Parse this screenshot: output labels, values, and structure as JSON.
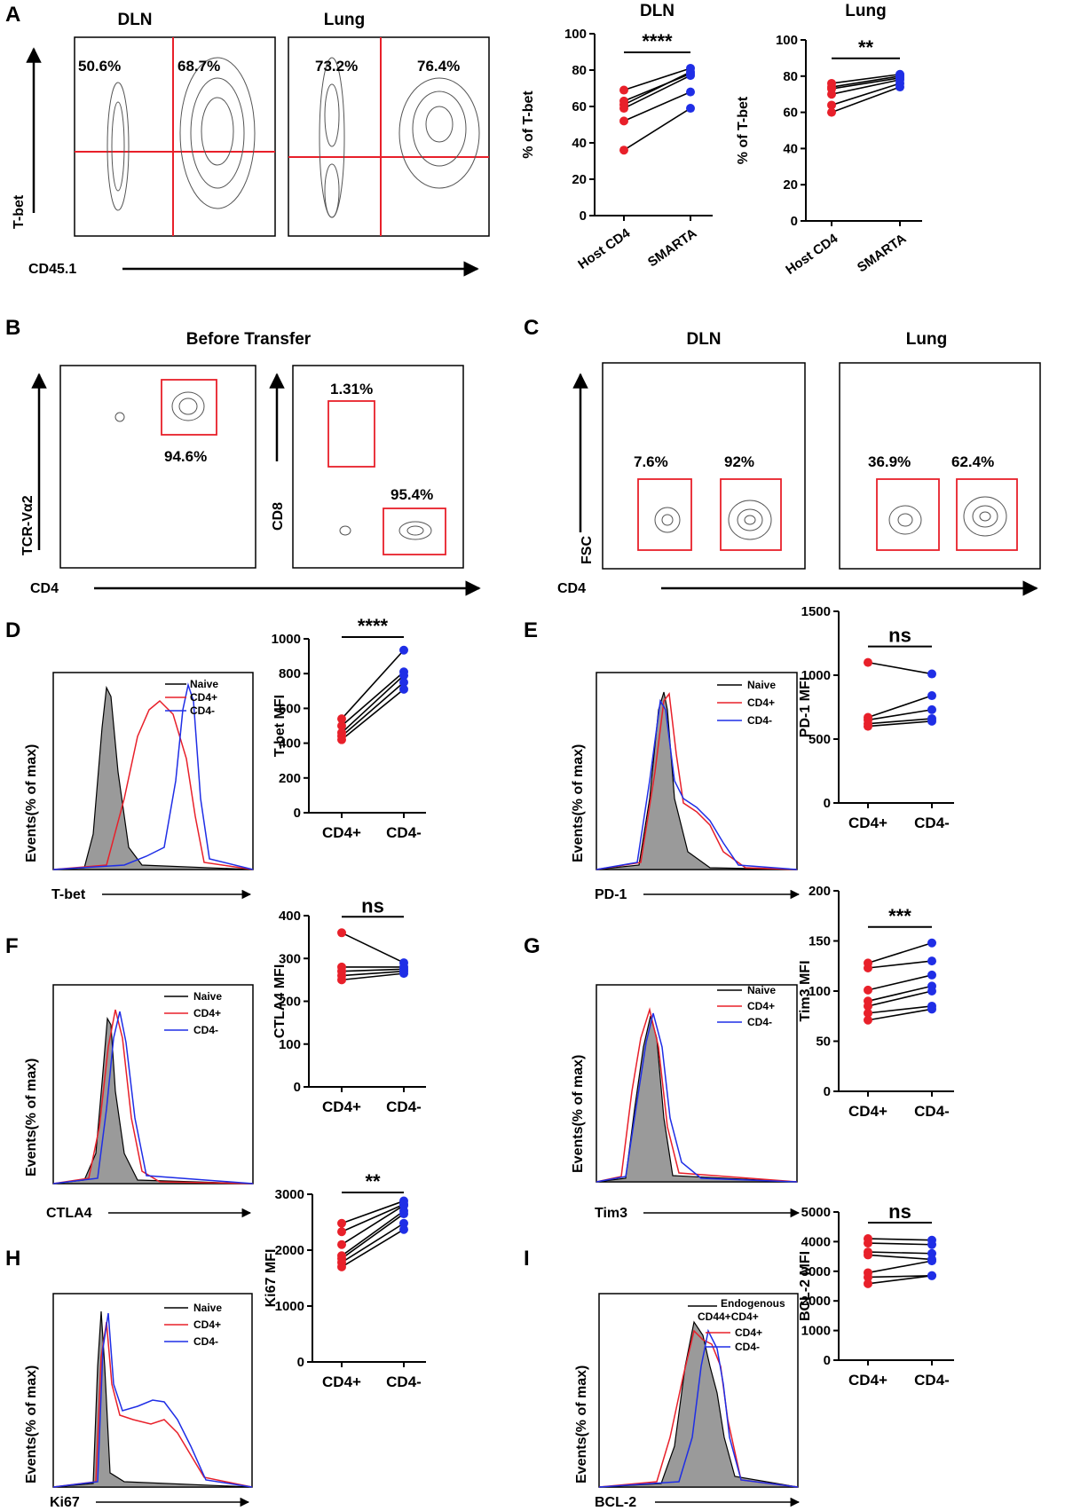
{
  "colors": {
    "red": "#e8202a",
    "blue": "#1f2ee6",
    "gray": "#9a9a9a",
    "black": "#000000"
  },
  "panel_letters": {
    "A": "A",
    "B": "B",
    "C": "C",
    "D": "D",
    "E": "E",
    "F": "F",
    "G": "G",
    "H": "H",
    "I": "I"
  },
  "panel_a": {
    "flow": {
      "dln_title": "DLN",
      "lung_title": "Lung",
      "y_label": "T-bet",
      "x_label": "CD45.1",
      "dln_left": "50.6%",
      "dln_right": "68.7%",
      "lung_left": "73.2%",
      "lung_right": "76.4%"
    }
  },
  "panel_b": {
    "title": "Before Transfer",
    "plot1": {
      "y_label": "TCR-Vα2",
      "x_label": "CD4",
      "gate": "94.6%"
    },
    "plot2": {
      "y_label": "CD8",
      "gate_top": "1.31%",
      "gate_bottom": "95.4%"
    }
  },
  "panel_c": {
    "dln_title": "DLN",
    "lung_title": "Lung",
    "y_label": "FSC",
    "x_label": "CD4",
    "dln_left": "7.6%",
    "dln_right": "92%",
    "lung_left": "36.9%",
    "lung_right": "62.4%"
  },
  "histograms": {
    "d": {
      "x_label": "T-bet",
      "y_label": "Events(% of max)",
      "legend": [
        "Naive",
        "CD4+",
        "CD4-"
      ]
    },
    "e": {
      "x_label": "PD-1",
      "y_label": "Events(% of max)",
      "legend": [
        "Naive",
        "CD4+",
        "CD4-"
      ]
    },
    "f": {
      "x_label": "CTLA4",
      "y_label": "Events(% of max)",
      "legend": [
        "Naive",
        "CD4+",
        "CD4-"
      ]
    },
    "g": {
      "x_label": "Tim3",
      "y_label": "Events(% of max)",
      "legend": [
        "Naive",
        "CD4+",
        "CD4-"
      ]
    },
    "h": {
      "x_label": "Ki67",
      "y_label": "Events(% of max)",
      "legend": [
        "Naive",
        "CD4+",
        "CD4-"
      ]
    },
    "i": {
      "x_label": "BCL-2",
      "y_label": "Events(% of max)",
      "legend_line1": "Endogenous",
      "legend_line2": "CD44+CD4+",
      "legend": [
        "CD4+",
        "CD4-"
      ]
    }
  },
  "chart_data": [
    {
      "id": "a_dln",
      "type": "scatter",
      "title": "DLN",
      "ylabel": "% of T-bet",
      "categories": [
        "Host CD4",
        "SMARTA"
      ],
      "ylim": [
        0,
        100
      ],
      "yticks": [
        0,
        20,
        40,
        60,
        80,
        100
      ],
      "significance": "****",
      "series": [
        {
          "name": "Host CD4",
          "values": [
            69,
            63,
            61,
            59,
            52,
            36
          ]
        },
        {
          "name": "SMARTA",
          "values": [
            81,
            78,
            79,
            77,
            68,
            59
          ]
        }
      ]
    },
    {
      "id": "a_lung",
      "type": "scatter",
      "title": "Lung",
      "ylabel": "% of T-bet",
      "categories": [
        "Host CD4",
        "SMARTA"
      ],
      "ylim": [
        0,
        100
      ],
      "yticks": [
        0,
        20,
        40,
        60,
        80,
        100
      ],
      "significance": "**",
      "series": [
        {
          "name": "Host CD4",
          "values": [
            76,
            74,
            73,
            70,
            64,
            60
          ]
        },
        {
          "name": "SMARTA",
          "values": [
            81,
            80,
            79,
            78,
            76,
            74
          ]
        }
      ]
    },
    {
      "id": "d",
      "type": "scatter",
      "ylabel": "T-bet MFI",
      "categories": [
        "CD4+",
        "CD4-"
      ],
      "ylim": [
        0,
        1000
      ],
      "yticks": [
        0,
        200,
        400,
        600,
        800,
        1000
      ],
      "significance": "****",
      "series": [
        {
          "name": "CD4+",
          "values": [
            540,
            500,
            460,
            440,
            420
          ]
        },
        {
          "name": "CD4-",
          "values": [
            935,
            810,
            790,
            750,
            710
          ]
        }
      ]
    },
    {
      "id": "e",
      "type": "scatter",
      "ylabel": "PD-1 MFI",
      "categories": [
        "CD4+",
        "CD4-"
      ],
      "ylim": [
        0,
        1500
      ],
      "yticks": [
        0,
        500,
        1000,
        1500
      ],
      "significance": "ns",
      "series": [
        {
          "name": "CD4+",
          "values": [
            1100,
            670,
            650,
            620,
            600
          ]
        },
        {
          "name": "CD4-",
          "values": [
            1010,
            840,
            730,
            660,
            640
          ]
        }
      ]
    },
    {
      "id": "f",
      "type": "scatter",
      "ylabel": "CTLA4 MFI",
      "categories": [
        "CD4+",
        "CD4-"
      ],
      "ylim": [
        0,
        400
      ],
      "yticks": [
        0,
        100,
        200,
        300,
        400
      ],
      "significance": "ns",
      "series": [
        {
          "name": "CD4+",
          "values": [
            360,
            280,
            270,
            260,
            250
          ]
        },
        {
          "name": "CD4-",
          "values": [
            290,
            280,
            275,
            270,
            265
          ]
        }
      ]
    },
    {
      "id": "g",
      "type": "scatter",
      "ylabel": "Tim3 MFI",
      "categories": [
        "CD4+",
        "CD4-"
      ],
      "ylim": [
        0,
        200
      ],
      "yticks": [
        0,
        50,
        100,
        150,
        200
      ],
      "significance": "***",
      "series": [
        {
          "name": "CD4+",
          "values": [
            128,
            123,
            101,
            90,
            85,
            78,
            71
          ]
        },
        {
          "name": "CD4-",
          "values": [
            148,
            130,
            116,
            105,
            100,
            85,
            82
          ]
        }
      ]
    },
    {
      "id": "h",
      "type": "scatter",
      "ylabel": "Ki67 MFI",
      "categories": [
        "CD4+",
        "CD4-"
      ],
      "ylim": [
        0,
        3000
      ],
      "yticks": [
        0,
        1000,
        2000,
        3000
      ],
      "significance": "**",
      "series": [
        {
          "name": "CD4+",
          "values": [
            2480,
            2330,
            2100,
            1900,
            1850,
            1780,
            1700
          ]
        },
        {
          "name": "CD4-",
          "values": [
            2880,
            2820,
            2800,
            2700,
            2650,
            2480,
            2370
          ]
        }
      ]
    },
    {
      "id": "i",
      "type": "scatter",
      "ylabel": "BCL-2 MFI",
      "categories": [
        "CD4+",
        "CD4-"
      ],
      "ylim": [
        0,
        5000
      ],
      "yticks": [
        0,
        1000,
        2000,
        3000,
        4000,
        5000
      ],
      "significance": "ns",
      "series": [
        {
          "name": "CD4+",
          "values": [
            4100,
            3950,
            3650,
            3550,
            2950,
            2800,
            2580
          ]
        },
        {
          "name": "CD4-",
          "values": [
            4050,
            3900,
            3600,
            3400,
            3350,
            2850,
            2850
          ]
        }
      ]
    }
  ]
}
